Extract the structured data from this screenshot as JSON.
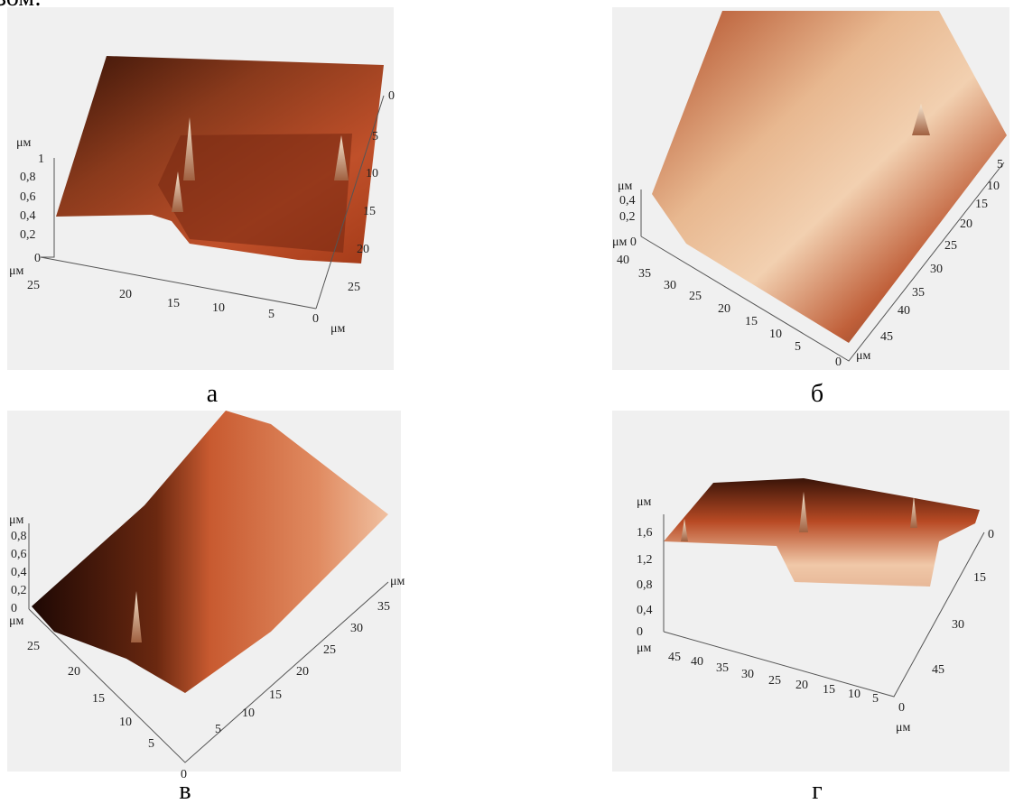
{
  "intro": "зом:",
  "panels": [
    {
      "caption": "а",
      "z_axis": [
        "μм",
        "1",
        "0,8",
        "0,6",
        "0,4",
        "0,2",
        "0",
        "μм"
      ],
      "x_axis": [
        "25",
        "20",
        "15",
        "10",
        "5",
        "0",
        "μм"
      ],
      "y_axis": [
        "0",
        "5",
        "10",
        "15",
        "20",
        "25"
      ]
    },
    {
      "caption": "б",
      "z_axis": [
        "μм",
        "0,4",
        "0,2",
        "μм 0"
      ],
      "x_axis": [
        "40",
        "35",
        "30",
        "25",
        "20",
        "15",
        "10",
        "5",
        "0",
        "μм"
      ],
      "y_axis": [
        "5",
        "10",
        "15",
        "20",
        "25",
        "30",
        "35",
        "40",
        "45"
      ]
    },
    {
      "caption": "в",
      "z_axis": [
        "μм",
        "0,8",
        "0,6",
        "0,4",
        "0,2",
        "0",
        "μм"
      ],
      "x_axis": [
        "25",
        "20",
        "15",
        "10",
        "5",
        "0"
      ],
      "y_axis": [
        "μм",
        "35",
        "30",
        "25",
        "20",
        "15",
        "10",
        "5"
      ]
    },
    {
      "caption": "г",
      "z_axis": [
        "μм",
        "1,6",
        "1,2",
        "0,8",
        "0,4",
        "0",
        "μм"
      ],
      "x_axis": [
        "45",
        "40",
        "35",
        "30",
        "25",
        "20",
        "15",
        "10",
        "5",
        "0",
        "μм"
      ],
      "y_axis": [
        "0",
        "15",
        "30",
        "45"
      ]
    }
  ]
}
